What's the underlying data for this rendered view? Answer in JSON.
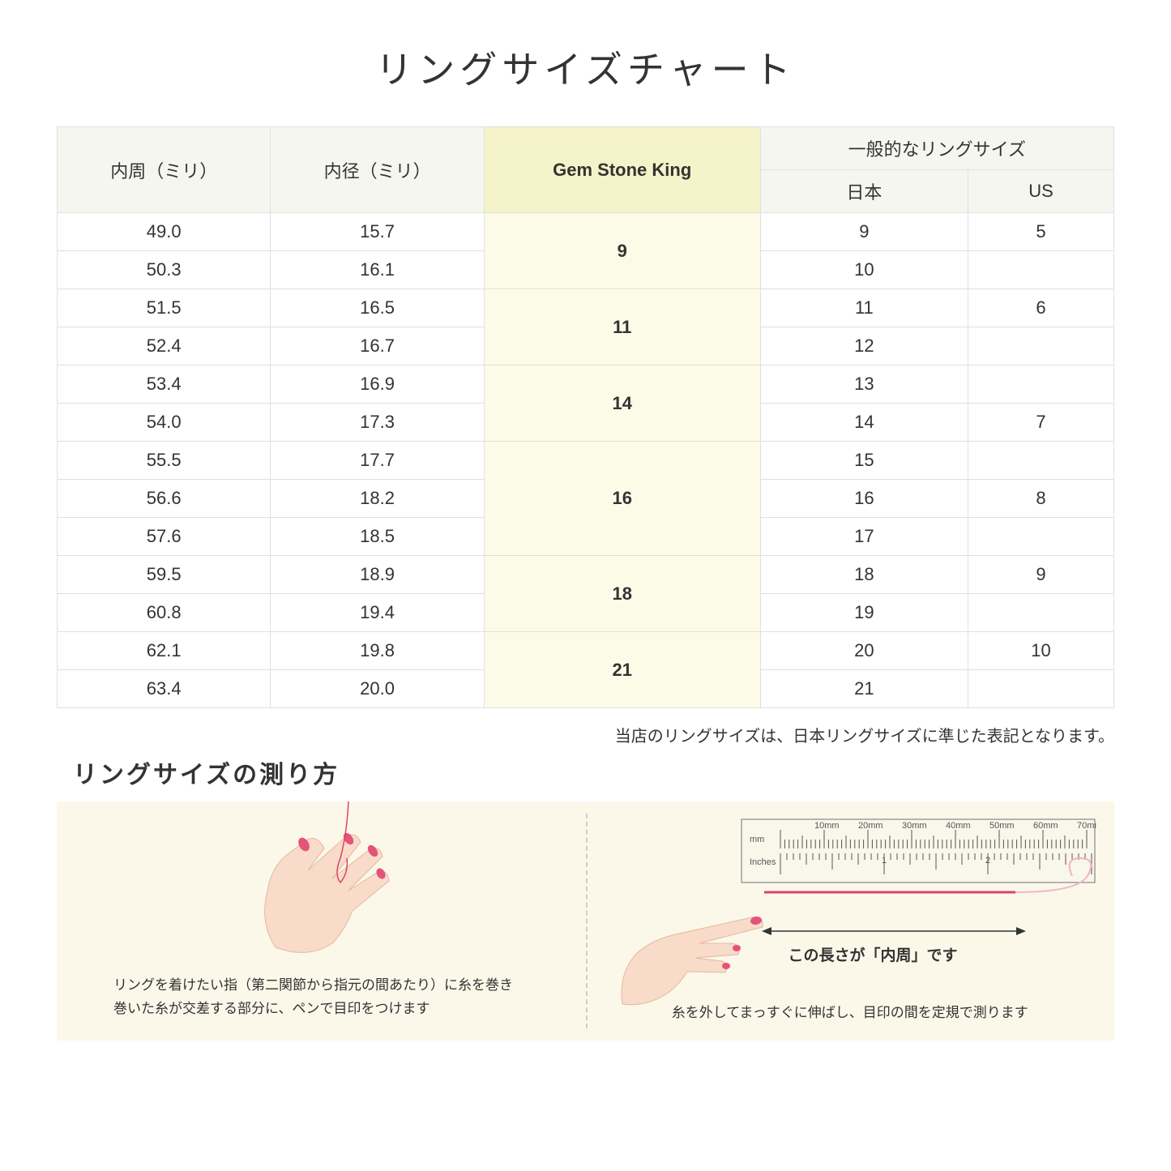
{
  "title": "リングサイズチャート",
  "headers": {
    "col1": "内周（ミリ）",
    "col2": "内径（ミリ）",
    "col3": "Gem Stone King",
    "col4_parent": "一般的なリングサイズ",
    "col4a": "日本",
    "col4b": "US"
  },
  "groups": [
    {
      "gsk": "9",
      "rows": [
        {
          "c": "49.0",
          "d": "15.7",
          "j": "9",
          "u": "5"
        },
        {
          "c": "50.3",
          "d": "16.1",
          "j": "10",
          "u": ""
        }
      ]
    },
    {
      "gsk": "11",
      "rows": [
        {
          "c": "51.5",
          "d": "16.5",
          "j": "11",
          "u": "6"
        },
        {
          "c": "52.4",
          "d": "16.7",
          "j": "12",
          "u": ""
        }
      ]
    },
    {
      "gsk": "14",
      "rows": [
        {
          "c": "53.4",
          "d": "16.9",
          "j": "13",
          "u": ""
        },
        {
          "c": "54.0",
          "d": "17.3",
          "j": "14",
          "u": "7"
        }
      ]
    },
    {
      "gsk": "16",
      "rows": [
        {
          "c": "55.5",
          "d": "17.7",
          "j": "15",
          "u": ""
        },
        {
          "c": "56.6",
          "d": "18.2",
          "j": "16",
          "u": "8"
        },
        {
          "c": "57.6",
          "d": "18.5",
          "j": "17",
          "u": ""
        }
      ]
    },
    {
      "gsk": "18",
      "rows": [
        {
          "c": "59.5",
          "d": "18.9",
          "j": "18",
          "u": "9"
        },
        {
          "c": "60.8",
          "d": "19.4",
          "j": "19",
          "u": ""
        }
      ]
    },
    {
      "gsk": "21",
      "rows": [
        {
          "c": "62.1",
          "d": "19.8",
          "j": "20",
          "u": "10"
        },
        {
          "c": "63.4",
          "d": "20.0",
          "j": "21",
          "u": ""
        }
      ]
    }
  ],
  "note": "当店のリングサイズは、日本リングサイズに準じた表記となります。",
  "subtitle": "リングサイズの測り方",
  "instruction1_line1": "リングを着けたい指（第二関節から指元の間あたり）に糸を巻き",
  "instruction1_line2": "巻いた糸が交差する部分に、ペンで目印をつけます",
  "instruction2": "糸を外してまっすぐに伸ばし、目印の間を定規で測ります",
  "measure_label": "この長さが「内周」です",
  "ruler_labels": {
    "mm": "mm",
    "inches": "Inches",
    "mm_ticks": [
      "10mm",
      "20mm",
      "30mm",
      "40mm",
      "50mm",
      "60mm",
      "70mm"
    ]
  },
  "colors": {
    "header_bg": "#f6f6f1",
    "gsk_header_bg": "#f5f3c9",
    "gsk_cell_bg": "#fcfbe8",
    "border": "#e0e0e0",
    "instruction_bg": "#fbf8ea",
    "skin": "#f8dbc9",
    "nail": "#e5537a",
    "thread": "#d9456b"
  }
}
